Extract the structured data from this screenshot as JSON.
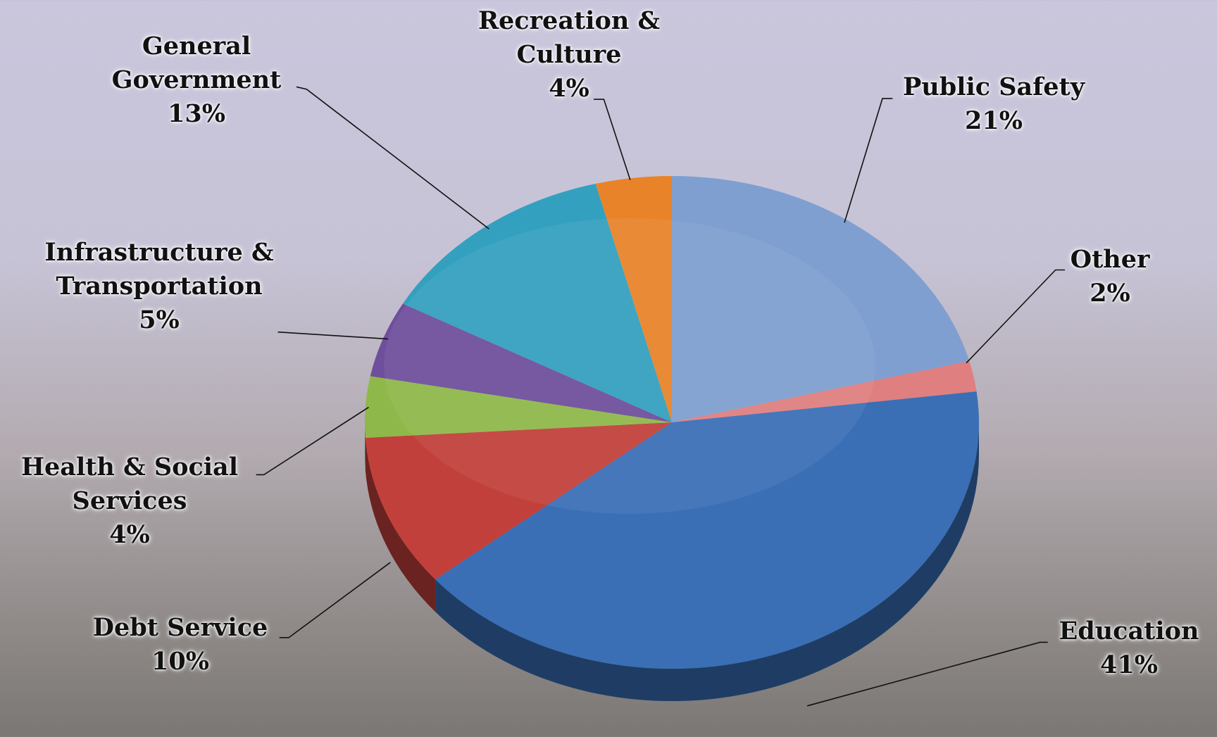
{
  "chart_data": {
    "type": "pie",
    "categories": [
      "Public Safety",
      "Other",
      "Education",
      "Debt Service",
      "Health & Social Services",
      "Infrastructure & Transportation",
      "General Government",
      "Recreation & Culture"
    ],
    "values": [
      21,
      2,
      41,
      10,
      4,
      5,
      13,
      4
    ],
    "value_labels": [
      "21%",
      "2%",
      "41%",
      "10%",
      "4%",
      "5%",
      "13%",
      "4%"
    ],
    "colors": [
      "#7f9fd0",
      "#e07f7f",
      "#3a6fb6",
      "#c2403b",
      "#8fb84a",
      "#6e4f9c",
      "#34a0bf",
      "#e8832a"
    ]
  }
}
